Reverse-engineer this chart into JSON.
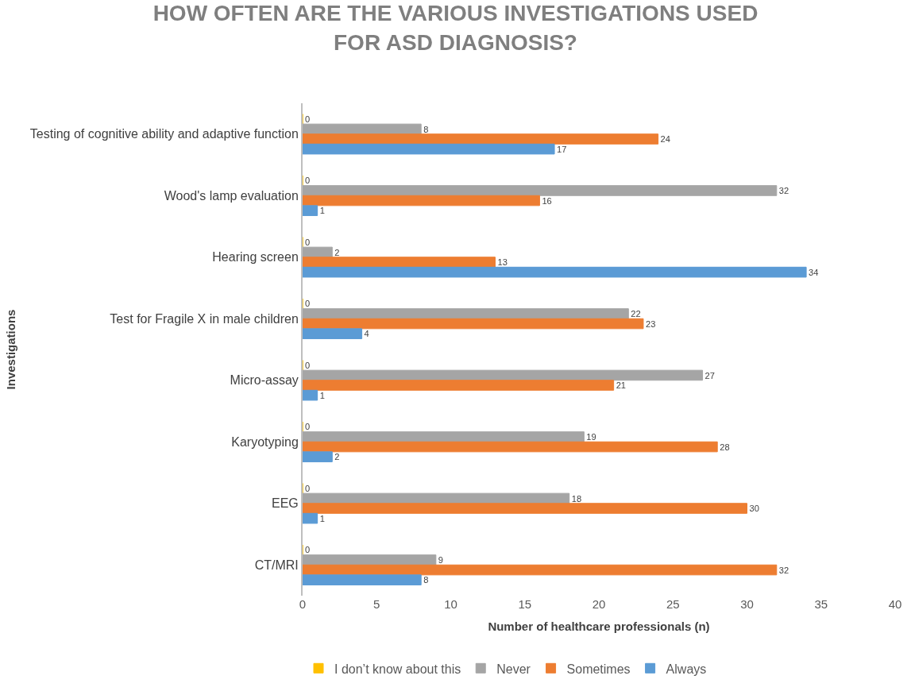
{
  "chart_data": {
    "type": "bar",
    "orientation": "horizontal",
    "title": "HOW OFTEN ARE THE VARIOUS INVESTIGATIONS USED FOR ASD DIAGNOSIS?",
    "xlabel": "Number of healthcare professionals (n)",
    "ylabel": "Investigations",
    "categories": [
      "Testing of cognitive ability and adaptive function",
      "Wood's lamp evaluation",
      "Hearing screen",
      "Test for Fragile X in male children",
      "Micro-assay",
      "Karyotyping",
      "EEG",
      "CT/MRI"
    ],
    "series": [
      {
        "name": "I don’t know about this",
        "color": "#ffc000",
        "values": [
          0,
          0,
          0,
          0,
          0,
          0,
          0,
          0
        ]
      },
      {
        "name": "Never",
        "color": "#a5a5a5",
        "values": [
          8,
          32,
          2,
          22,
          27,
          19,
          18,
          9
        ]
      },
      {
        "name": "Sometimes",
        "color": "#ed7d31",
        "values": [
          24,
          16,
          13,
          23,
          21,
          28,
          30,
          32
        ]
      },
      {
        "name": "Always",
        "color": "#5b9bd5",
        "values": [
          17,
          1,
          34,
          4,
          1,
          2,
          1,
          8
        ]
      }
    ],
    "xlim": [
      0,
      40
    ],
    "xticks": [
      0,
      5,
      10,
      15,
      20,
      25,
      30,
      35,
      40
    ],
    "legend": "bottom left",
    "data_labels": true
  }
}
